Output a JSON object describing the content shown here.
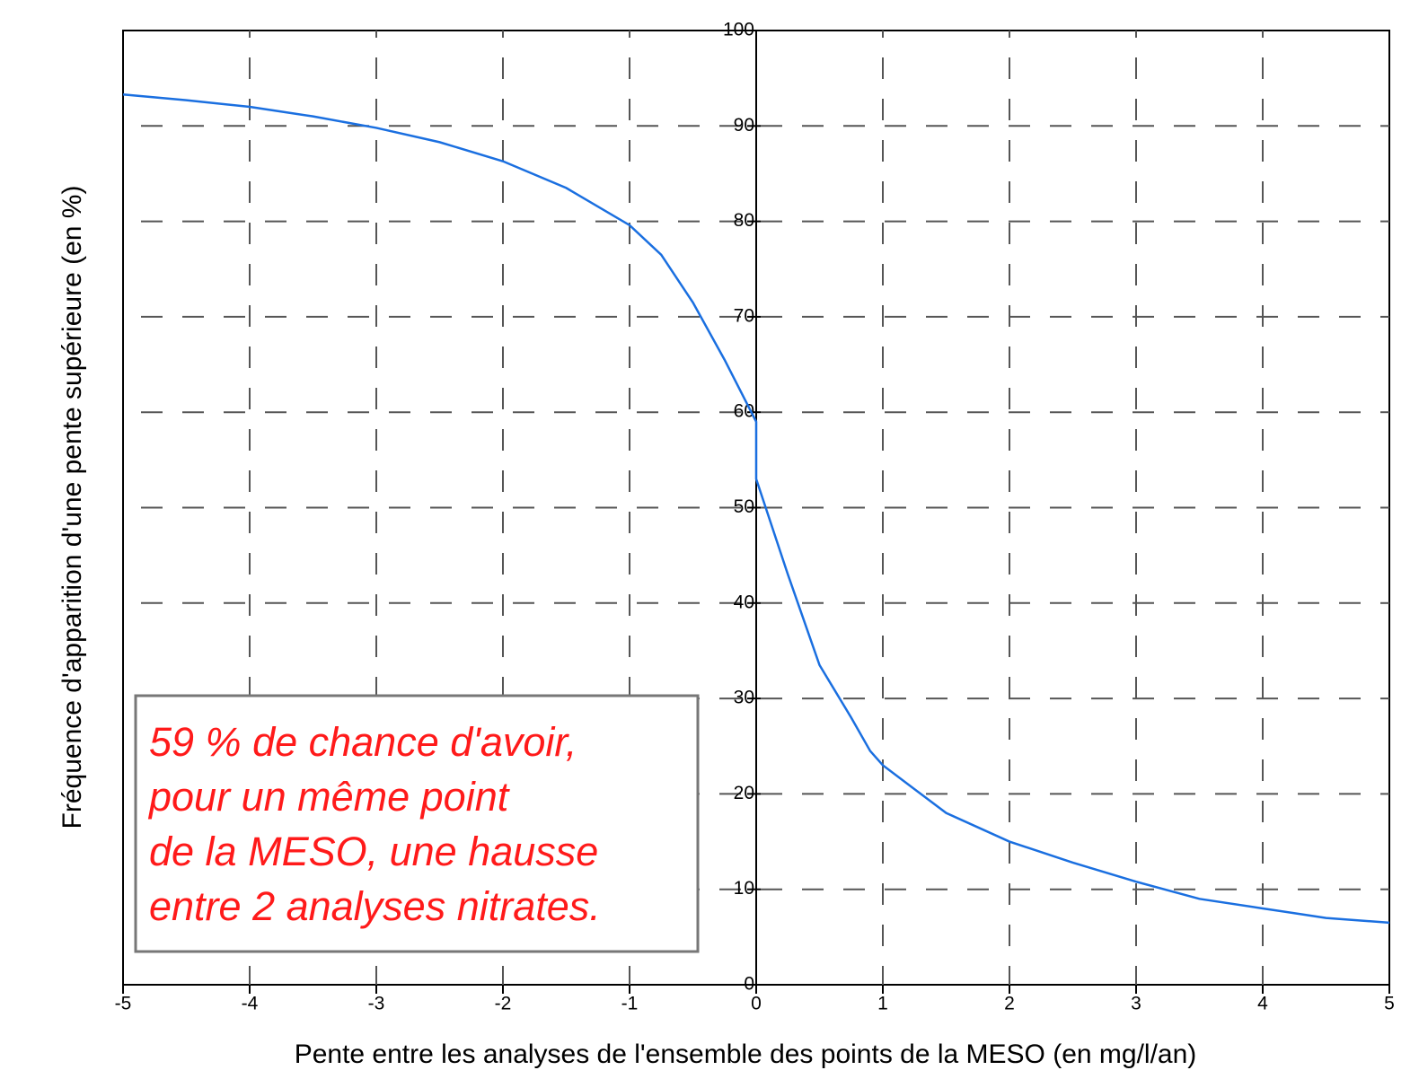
{
  "chart_data": {
    "type": "line",
    "x_label": "Pente entre les analyses de l'ensemble des points de la MESO (en mg/l/an)",
    "y_label": "Fréquence d'apparition d'une pente supérieure (en %)",
    "annotation": [
      "59 % de chance d'avoir,",
      "pour un même point",
      "de la MESO, une hausse",
      "entre 2 analyses nitrates."
    ],
    "x": [
      -5,
      -4.5,
      -4,
      -3.5,
      -3,
      -2.5,
      -2,
      -1.5,
      -1,
      -0.75,
      -0.5,
      -0.25,
      0,
      0,
      0.25,
      0.5,
      0.75,
      0.9,
      1,
      1.5,
      2,
      2.5,
      3,
      3.5,
      4,
      4.5,
      5
    ],
    "series": [
      {
        "name": "Fréquence",
        "color": "#1a6fe0",
        "values": [
          93.3,
          92.7,
          92,
          91,
          89.8,
          88.3,
          86.3,
          83.5,
          79.6,
          76.5,
          71.5,
          65.5,
          59,
          53,
          43,
          33.5,
          28,
          24.5,
          23,
          18,
          15,
          12.8,
          10.8,
          9,
          8,
          7,
          6.5
        ]
      }
    ],
    "xlim": [
      -5,
      5
    ],
    "xticks": [
      -5,
      -4,
      -3,
      -2,
      -1,
      0,
      1,
      2,
      3,
      4,
      5
    ],
    "ylim": [
      0,
      100
    ],
    "yticks": [
      0,
      10,
      20,
      30,
      40,
      50,
      60,
      70,
      80,
      90,
      100
    ],
    "grid": true
  }
}
